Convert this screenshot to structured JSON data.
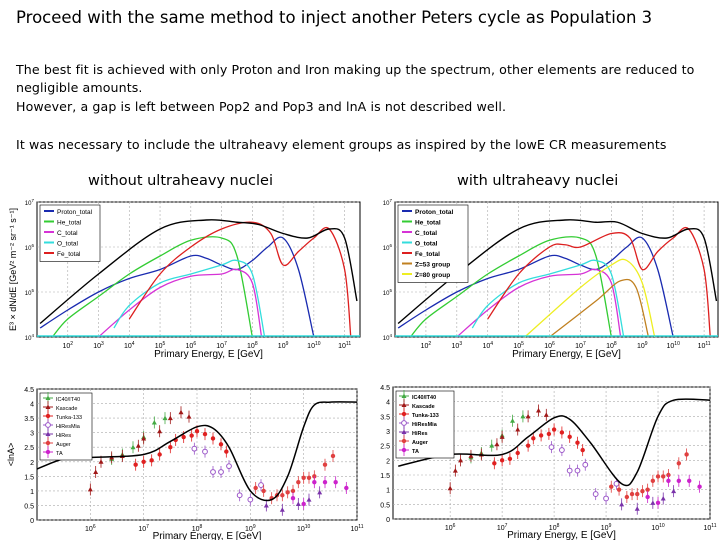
{
  "slide": {
    "title": "Proceed with the same method to inject another Peters cycle as Population 3",
    "paragraphs": [
      "The best fit is achieved with only Proton and Iron making up the spectrum, other elements are reduced to",
      "negligible amounts.",
      "However, a gap is left between Pop2 and Pop3 and lnA is not described well.",
      "It was necessary to include the ultraheavy element groups as inspired by the lowE CR measurements"
    ],
    "left_heading": "without ultraheavy nuclei",
    "right_heading": "with ultraheavy nuclei"
  },
  "colors": {
    "total": "#000000",
    "proton": "#1a2bb0",
    "he": "#33cc33",
    "c": "#d633d6",
    "o": "#33dddd",
    "fe": "#dd1f1f",
    "z53": "#c08020",
    "z80": "#eeee22",
    "icetop": "#44aa44",
    "kascade": "#a01818",
    "tunka": "#e02020",
    "hiresmia": "#9a55c8",
    "hires": "#7a33aa",
    "auger": "#e04040",
    "ta": "#cc22cc",
    "grid": "#aaaaaa"
  },
  "spectrum_plots": [
    {
      "ylabel": "E³ × dN/dE [GeV² m⁻² sr⁻¹ s⁻¹]",
      "xlabel": "Primary Energy, E [GeV]",
      "x_ticks": [
        "2",
        "3",
        "4",
        "5",
        "6",
        "7",
        "8",
        "9",
        "10",
        "11"
      ],
      "y_ticks": [
        "4",
        "5",
        "6",
        "7"
      ],
      "legend": [
        {
          "label": "Proton_total",
          "color_key": "proton"
        },
        {
          "label": "He_total",
          "color_key": "he"
        },
        {
          "label": "C_total",
          "color_key": "c"
        },
        {
          "label": "O_total",
          "color_key": "o"
        },
        {
          "label": "Fe_total",
          "color_key": "fe"
        }
      ],
      "curves": [
        {
          "color_key": "proton",
          "points": [
            [
              1.1,
              4.2
            ],
            [
              2,
              4.6
            ],
            [
              3,
              5.0
            ],
            [
              4,
              5.3
            ],
            [
              5,
              5.5
            ],
            [
              6,
              5.8
            ],
            [
              6.5,
              5.75
            ],
            [
              7,
              5.6
            ],
            [
              7.5,
              5.5
            ],
            [
              8,
              5.7
            ],
            [
              8.5,
              6.0
            ],
            [
              9,
              6.2
            ],
            [
              9.5,
              5.5
            ],
            [
              10,
              4.0
            ]
          ]
        },
        {
          "color_key": "he",
          "points": [
            [
              1.5,
              4.0
            ],
            [
              2,
              4.4
            ],
            [
              3,
              4.9
            ],
            [
              4,
              5.4
            ],
            [
              5,
              5.8
            ],
            [
              6,
              6.15
            ],
            [
              7,
              6.2
            ],
            [
              7.5,
              5.8
            ],
            [
              8,
              4.0
            ]
          ]
        },
        {
          "color_key": "c",
          "points": [
            [
              3,
              4.0
            ],
            [
              4,
              4.6
            ],
            [
              5,
              5.1
            ],
            [
              6,
              5.35
            ],
            [
              7,
              5.4
            ],
            [
              7.5,
              5.5
            ],
            [
              8,
              5.2
            ],
            [
              8.3,
              4.0
            ]
          ]
        },
        {
          "color_key": "o",
          "points": [
            [
              3.5,
              4.2
            ],
            [
              4,
              4.7
            ],
            [
              5,
              5.2
            ],
            [
              6,
              5.4
            ],
            [
              7,
              5.6
            ],
            [
              7.5,
              5.7
            ],
            [
              8,
              5.4
            ],
            [
              8.4,
              4.0
            ]
          ]
        },
        {
          "color_key": "fe",
          "points": [
            [
              4,
              4.4
            ],
            [
              5,
              5.4
            ],
            [
              6,
              6.0
            ],
            [
              7,
              6.4
            ],
            [
              8,
              6.55
            ],
            [
              8.6,
              6.3
            ],
            [
              9,
              5.6
            ],
            [
              9.5,
              5.9
            ],
            [
              10,
              6.2
            ],
            [
              10.5,
              6.4
            ],
            [
              11,
              5.5
            ],
            [
              11.2,
              4.0
            ]
          ]
        },
        {
          "color_key": "total",
          "points": [
            [
              1.1,
              4.3
            ],
            [
              3,
              5.4
            ],
            [
              5,
              6.4
            ],
            [
              6.5,
              6.6
            ],
            [
              7.5,
              6.55
            ],
            [
              8.2,
              6.5
            ],
            [
              9,
              6.3
            ],
            [
              9.8,
              6.2
            ],
            [
              10.5,
              6.4
            ],
            [
              11,
              6.2
            ],
            [
              11.4,
              4.8
            ]
          ]
        }
      ]
    },
    {
      "ylabel": "",
      "xlabel": "Primary Energy, E [GeV]",
      "x_ticks": [
        "2",
        "3",
        "4",
        "5",
        "6",
        "7",
        "8",
        "9",
        "10",
        "11"
      ],
      "y_ticks": [
        "4",
        "5",
        "6",
        "7"
      ],
      "legend": [
        {
          "label": "Proton_total",
          "color_key": "proton"
        },
        {
          "label": "He_total",
          "color_key": "he"
        },
        {
          "label": "C_total",
          "color_key": "c"
        },
        {
          "label": "O_total",
          "color_key": "o"
        },
        {
          "label": "Fe_total",
          "color_key": "fe"
        },
        {
          "label": "Z=53 group",
          "color_key": "z53"
        },
        {
          "label": "Z=80 group",
          "color_key": "z80"
        }
      ],
      "curves": [
        {
          "color_key": "proton",
          "points": [
            [
              1.1,
              4.2
            ],
            [
              2,
              4.6
            ],
            [
              3,
              5.0
            ],
            [
              4,
              5.3
            ],
            [
              5,
              5.5
            ],
            [
              6,
              5.8
            ],
            [
              6.5,
              5.75
            ],
            [
              7,
              5.6
            ],
            [
              7.5,
              5.5
            ],
            [
              8,
              5.7
            ],
            [
              8.5,
              6.0
            ],
            [
              9,
              6.2
            ],
            [
              9.5,
              5.5
            ],
            [
              10,
              4.0
            ]
          ]
        },
        {
          "color_key": "he",
          "points": [
            [
              1.5,
              4.0
            ],
            [
              2,
              4.4
            ],
            [
              3,
              4.9
            ],
            [
              4,
              5.4
            ],
            [
              5,
              5.8
            ],
            [
              6,
              6.15
            ],
            [
              7,
              6.2
            ],
            [
              7.5,
              5.8
            ],
            [
              8,
              4.0
            ]
          ]
        },
        {
          "color_key": "c",
          "points": [
            [
              3,
              4.0
            ],
            [
              4,
              4.6
            ],
            [
              5,
              5.1
            ],
            [
              6,
              5.35
            ],
            [
              7,
              5.4
            ],
            [
              7.5,
              5.5
            ],
            [
              8,
              5.2
            ],
            [
              8.3,
              4.0
            ]
          ]
        },
        {
          "color_key": "o",
          "points": [
            [
              3.5,
              4.2
            ],
            [
              4,
              4.7
            ],
            [
              5,
              5.2
            ],
            [
              6,
              5.4
            ],
            [
              7,
              5.6
            ],
            [
              7.5,
              5.7
            ],
            [
              8,
              5.4
            ],
            [
              8.4,
              4.0
            ]
          ]
        },
        {
          "color_key": "z53",
          "points": [
            [
              6,
              4.0
            ],
            [
              7.5,
              4.8
            ],
            [
              8.3,
              5.25
            ],
            [
              8.8,
              5.1
            ],
            [
              9.2,
              4.0
            ]
          ]
        },
        {
          "color_key": "z80",
          "points": [
            [
              5.2,
              4.0
            ],
            [
              7,
              5.1
            ],
            [
              8,
              5.6
            ],
            [
              8.5,
              5.7
            ],
            [
              9,
              5.2
            ],
            [
              9.4,
              4.0
            ]
          ]
        },
        {
          "color_key": "fe",
          "points": [
            [
              4,
              4.4
            ],
            [
              5,
              5.4
            ],
            [
              6,
              6.0
            ],
            [
              6.5,
              6.05
            ],
            [
              7,
              6.0
            ],
            [
              8,
              6.3
            ],
            [
              8.6,
              6.2
            ],
            [
              9,
              5.5
            ],
            [
              9.5,
              5.9
            ],
            [
              10,
              6.2
            ],
            [
              10.5,
              6.4
            ],
            [
              11,
              5.5
            ],
            [
              11.2,
              4.0
            ]
          ]
        },
        {
          "color_key": "total",
          "points": [
            [
              1.1,
              4.3
            ],
            [
              3,
              5.4
            ],
            [
              5,
              6.4
            ],
            [
              6.5,
              6.6
            ],
            [
              7.5,
              6.55
            ],
            [
              8.2,
              6.55
            ],
            [
              9,
              6.3
            ],
            [
              9.8,
              6.2
            ],
            [
              10.5,
              6.4
            ],
            [
              11,
              6.2
            ],
            [
              11.4,
              4.8
            ]
          ]
        }
      ]
    }
  ],
  "lna_plots": [
    {
      "ylabel": "<lnA>",
      "xlabel": "Primary Energy, E [GeV]",
      "x_ticks": [
        "6",
        "7",
        "8",
        "9",
        "10",
        "11"
      ],
      "y_ticks": [
        "0",
        "0.5",
        "1",
        "1.5",
        "2",
        "2.5",
        "3",
        "3.5",
        "4",
        "4.5"
      ],
      "legend": [
        {
          "label": "IC40/IT40",
          "color_key": "icetop"
        },
        {
          "label": "Kascade",
          "color_key": "kascade"
        },
        {
          "label": "Tunka-133",
          "color_key": "tunka"
        },
        {
          "label": "HiResMia",
          "color_key": "hiresmia"
        },
        {
          "label": "HiRes",
          "color_key": "hires"
        },
        {
          "label": "Auger",
          "color_key": "auger"
        },
        {
          "label": "TA",
          "color_key": "ta"
        }
      ],
      "model": [
        [
          5,
          1.75
        ],
        [
          5.5,
          2.1
        ],
        [
          6,
          2.15
        ],
        [
          7,
          2.25
        ],
        [
          7.5,
          2.7
        ],
        [
          8,
          3.2
        ],
        [
          8.3,
          3.15
        ],
        [
          8.6,
          2.5
        ],
        [
          9,
          1.0
        ],
        [
          9.4,
          0.7
        ],
        [
          9.7,
          1.5
        ],
        [
          10,
          3.2
        ],
        [
          10.2,
          3.95
        ],
        [
          10.5,
          4.05
        ],
        [
          11,
          4.05
        ]
      ]
    },
    {
      "ylabel": "",
      "xlabel": "Primary Energy, E [GeV]",
      "x_ticks": [
        "6",
        "7",
        "8",
        "9",
        "10",
        "11"
      ],
      "y_ticks": [
        "0",
        "0.5",
        "1",
        "1.5",
        "2",
        "2.5",
        "3",
        "3.5",
        "4",
        "4.5"
      ],
      "legend": [
        {
          "label": "IC40/IT40",
          "color_key": "icetop"
        },
        {
          "label": "Kascade",
          "color_key": "kascade"
        },
        {
          "label": "Tunka-133",
          "color_key": "tunka"
        },
        {
          "label": "HiResMia",
          "color_key": "hiresmia"
        },
        {
          "label": "HiRes",
          "color_key": "hires"
        },
        {
          "label": "Auger",
          "color_key": "auger"
        },
        {
          "label": "TA",
          "color_key": "ta"
        }
      ],
      "model": [
        [
          5,
          1.8
        ],
        [
          6,
          2.2
        ],
        [
          7,
          2.2
        ],
        [
          7.5,
          2.8
        ],
        [
          8,
          3.45
        ],
        [
          8.3,
          3.4
        ],
        [
          8.7,
          2.6
        ],
        [
          9.3,
          1.2
        ],
        [
          9.6,
          1.6
        ],
        [
          10,
          3.5
        ],
        [
          10.3,
          4.05
        ],
        [
          11,
          4.05
        ]
      ]
    }
  ],
  "lna_measurements": [
    {
      "color_key": "icetop",
      "points": [
        [
          6.4,
          2.1
        ],
        [
          6.6,
          2.25
        ],
        [
          6.8,
          2.5
        ],
        [
          7.0,
          2.85
        ],
        [
          7.2,
          3.35
        ],
        [
          7.4,
          3.5
        ]
      ]
    },
    {
      "color_key": "kascade",
      "points": [
        [
          6.0,
          1.05
        ],
        [
          6.1,
          1.65
        ],
        [
          6.2,
          2.0
        ],
        [
          6.4,
          2.15
        ],
        [
          6.6,
          2.2
        ],
        [
          6.9,
          2.55
        ],
        [
          7.0,
          2.8
        ],
        [
          7.3,
          3.05
        ],
        [
          7.5,
          3.5
        ],
        [
          7.7,
          3.7
        ],
        [
          7.85,
          3.55
        ]
      ]
    },
    {
      "color_key": "tunka",
      "points": [
        [
          6.85,
          1.9
        ],
        [
          7.0,
          2.0
        ],
        [
          7.15,
          2.05
        ],
        [
          7.3,
          2.25
        ],
        [
          7.5,
          2.5
        ],
        [
          7.6,
          2.75
        ],
        [
          7.75,
          2.85
        ],
        [
          7.9,
          2.9
        ],
        [
          8.0,
          3.05
        ],
        [
          8.15,
          2.95
        ],
        [
          8.3,
          2.8
        ],
        [
          8.45,
          2.6
        ],
        [
          8.55,
          2.35
        ]
      ]
    },
    {
      "color_key": "hiresmia",
      "points": [
        [
          7.95,
          2.45
        ],
        [
          8.15,
          2.35
        ],
        [
          8.3,
          1.65
        ],
        [
          8.45,
          1.65
        ],
        [
          8.6,
          1.85
        ],
        [
          8.8,
          0.85
        ],
        [
          9.0,
          0.7
        ],
        [
          9.2,
          1.2
        ]
      ]
    },
    {
      "color_key": "hires",
      "points": [
        [
          9.3,
          0.5
        ],
        [
          9.6,
          0.35
        ],
        [
          9.9,
          0.55
        ],
        [
          10.1,
          0.7
        ],
        [
          10.3,
          0.95
        ]
      ]
    },
    {
      "color_key": "auger",
      "points": [
        [
          9.1,
          1.1
        ],
        [
          9.25,
          1.0
        ],
        [
          9.4,
          0.75
        ],
        [
          9.5,
          0.85
        ],
        [
          9.6,
          0.85
        ],
        [
          9.7,
          0.95
        ],
        [
          9.8,
          1.0
        ],
        [
          9.9,
          1.3
        ],
        [
          10.0,
          1.45
        ],
        [
          10.1,
          1.45
        ],
        [
          10.2,
          1.5
        ],
        [
          10.4,
          1.9
        ],
        [
          10.55,
          2.2
        ]
      ]
    },
    {
      "color_key": "ta",
      "points": [
        [
          9.8,
          0.75
        ],
        [
          10.0,
          0.55
        ],
        [
          10.2,
          1.3
        ],
        [
          10.4,
          1.3
        ],
        [
          10.6,
          1.3
        ],
        [
          10.8,
          1.1
        ]
      ]
    }
  ]
}
